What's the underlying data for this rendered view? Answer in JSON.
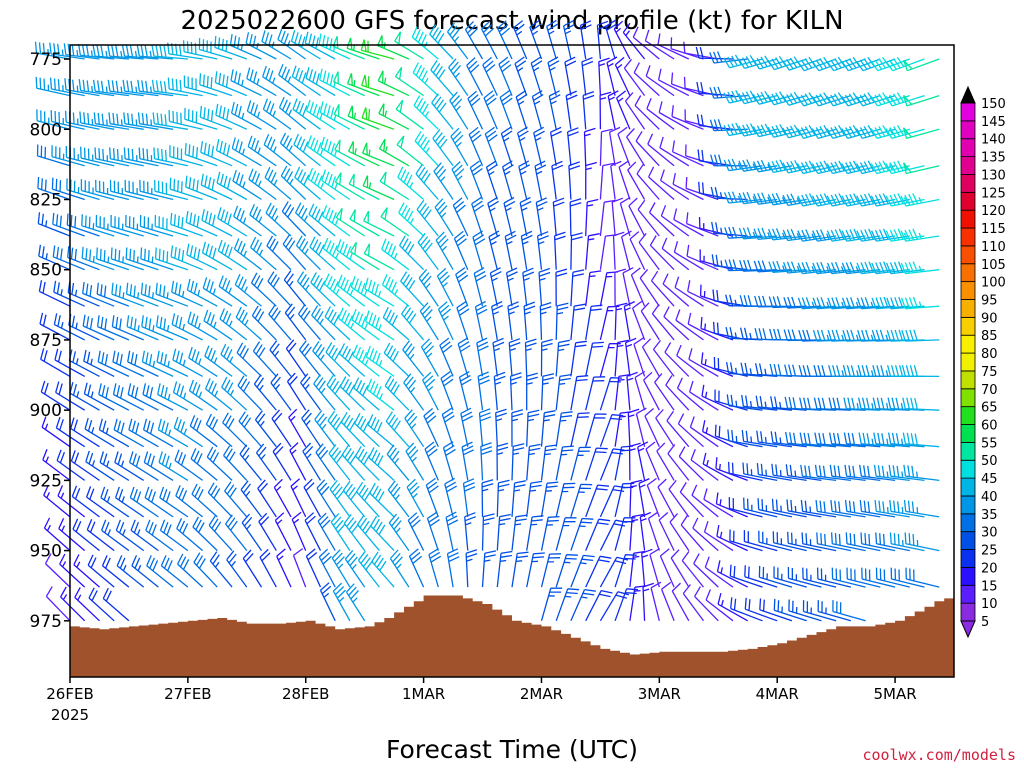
{
  "chart_data": {
    "type": "wind-barb-time-height",
    "title": "2025022600 GFS forecast wind profile (kt) for KILN",
    "xlabel": "Forecast Time (UTC)",
    "ylabel": "",
    "y_axis": {
      "label": "",
      "inverted": true,
      "range_hpa": [
        770,
        995
      ],
      "ticks": [
        775,
        800,
        825,
        850,
        875,
        900,
        925,
        950,
        975
      ],
      "tick_labels": [
        "775",
        "800",
        "825",
        "850",
        "875",
        "900",
        "925",
        "950",
        "975"
      ]
    },
    "x_axis": {
      "range_hours": [
        0,
        180
      ],
      "ticks_hours": [
        0,
        24,
        48,
        72,
        96,
        120,
        144,
        168
      ],
      "tick_labels": [
        "26FEB",
        "27FEB",
        "28FEB",
        "1MAR",
        "2MAR",
        "3MAR",
        "4MAR",
        "5MAR"
      ],
      "year_label": "2025"
    },
    "barb_levels_hpa": [
      775,
      788,
      800,
      813,
      825,
      838,
      850,
      863,
      875,
      888,
      900,
      913,
      925,
      938,
      950,
      963,
      975
    ],
    "key_times": [
      {
        "t": 0,
        "dir": 280,
        "spd": [
          35,
          35,
          30,
          25,
          20,
          15,
          10
        ]
      },
      {
        "t": 12,
        "dir": 275,
        "spd": [
          35,
          35,
          35,
          35,
          30,
          25,
          20
        ]
      },
      {
        "t": 24,
        "dir": 275,
        "spd": [
          38,
          38,
          38,
          38,
          35,
          33,
          30
        ]
      },
      {
        "t": 36,
        "dir": 290,
        "spd": [
          38,
          38,
          38,
          38,
          35,
          30,
          25
        ]
      },
      {
        "t": 48,
        "dir": 305,
        "spd": [
          35,
          35,
          35,
          30,
          25,
          15,
          10
        ]
      },
      {
        "t": 57,
        "dir": 295,
        "spd": [
          45,
          47,
          47,
          45,
          42,
          40,
          35
        ]
      },
      {
        "t": 66,
        "dir": 285,
        "spd": [
          58,
          60,
          55,
          50,
          45,
          40,
          38
        ]
      },
      {
        "t": 75,
        "dir": 310,
        "spd": [
          45,
          45,
          42,
          38,
          35,
          30,
          28
        ]
      },
      {
        "t": 84,
        "dir": 330,
        "spd": [
          30,
          30,
          28,
          28,
          28,
          28,
          25
        ]
      },
      {
        "t": 96,
        "dir": 340,
        "spd": [
          25,
          25,
          25,
          25,
          25,
          25,
          25
        ]
      },
      {
        "t": 108,
        "dir": 355,
        "spd": [
          20,
          15,
          10,
          10,
          15,
          20,
          20
        ]
      },
      {
        "t": 120,
        "dir": 310,
        "spd": [
          10,
          10,
          10,
          10,
          10,
          10,
          10
        ]
      },
      {
        "t": 132,
        "dir": 280,
        "spd": [
          12,
          12,
          10,
          10,
          10,
          8,
          8
        ]
      },
      {
        "t": 141,
        "dir": 255,
        "spd": [
          38,
          38,
          35,
          30,
          25,
          22,
          20
        ]
      },
      {
        "t": 156,
        "dir": 250,
        "spd": [
          40,
          40,
          38,
          35,
          32,
          28,
          25
        ]
      },
      {
        "t": 168,
        "dir": 250,
        "spd": [
          42,
          42,
          40,
          38,
          35,
          32,
          30
        ]
      },
      {
        "t": 178,
        "dir": 250,
        "spd": [
          50,
          50,
          48,
          45,
          42,
          38,
          30
        ]
      }
    ],
    "speed_anchor_levels_hpa": [
      775,
      800,
      825,
      850,
      875,
      925,
      975
    ],
    "surface_pressure": [
      {
        "t": 0,
        "p": 977
      },
      {
        "t": 6,
        "p": 978
      },
      {
        "t": 12,
        "p": 977
      },
      {
        "t": 18,
        "p": 976
      },
      {
        "t": 24,
        "p": 975
      },
      {
        "t": 30,
        "p": 974
      },
      {
        "t": 36,
        "p": 976
      },
      {
        "t": 42,
        "p": 976
      },
      {
        "t": 48,
        "p": 975
      },
      {
        "t": 54,
        "p": 978
      },
      {
        "t": 60,
        "p": 977
      },
      {
        "t": 64,
        "p": 974
      },
      {
        "t": 68,
        "p": 970
      },
      {
        "t": 72,
        "p": 966
      },
      {
        "t": 78,
        "p": 966
      },
      {
        "t": 84,
        "p": 969
      },
      {
        "t": 90,
        "p": 975
      },
      {
        "t": 96,
        "p": 977
      },
      {
        "t": 102,
        "p": 981
      },
      {
        "t": 108,
        "p": 985
      },
      {
        "t": 114,
        "p": 987
      },
      {
        "t": 120,
        "p": 986
      },
      {
        "t": 126,
        "p": 986
      },
      {
        "t": 132,
        "p": 986
      },
      {
        "t": 138,
        "p": 985
      },
      {
        "t": 144,
        "p": 983
      },
      {
        "t": 150,
        "p": 980
      },
      {
        "t": 156,
        "p": 977
      },
      {
        "t": 162,
        "p": 977
      },
      {
        "t": 168,
        "p": 975
      },
      {
        "t": 174,
        "p": 970
      },
      {
        "t": 177,
        "p": 967
      },
      {
        "t": 180,
        "p": 967
      }
    ],
    "terrain_color": "#a0522d",
    "colorbar": {
      "label": "",
      "ticks": [
        5,
        10,
        15,
        20,
        25,
        30,
        35,
        40,
        45,
        50,
        55,
        60,
        65,
        70,
        75,
        80,
        85,
        90,
        95,
        100,
        105,
        110,
        115,
        120,
        125,
        130,
        135,
        140,
        145,
        150
      ],
      "colors": [
        "#8a2be2",
        "#5a1eff",
        "#2a10ff",
        "#0a30f0",
        "#0050e6",
        "#0070e6",
        "#0096e6",
        "#00b4e6",
        "#00e0e0",
        "#00e6a0",
        "#00e050",
        "#20e020",
        "#80e000",
        "#c0e000",
        "#f0f000",
        "#f8f000",
        "#f8d000",
        "#f8b000",
        "#f89000",
        "#f87000",
        "#f85000",
        "#f83000",
        "#f01000",
        "#e00030",
        "#e00060",
        "#e00090",
        "#e000b0",
        "#e000c0",
        "#e000e0"
      ]
    }
  },
  "credit": "coolwx.com/models"
}
